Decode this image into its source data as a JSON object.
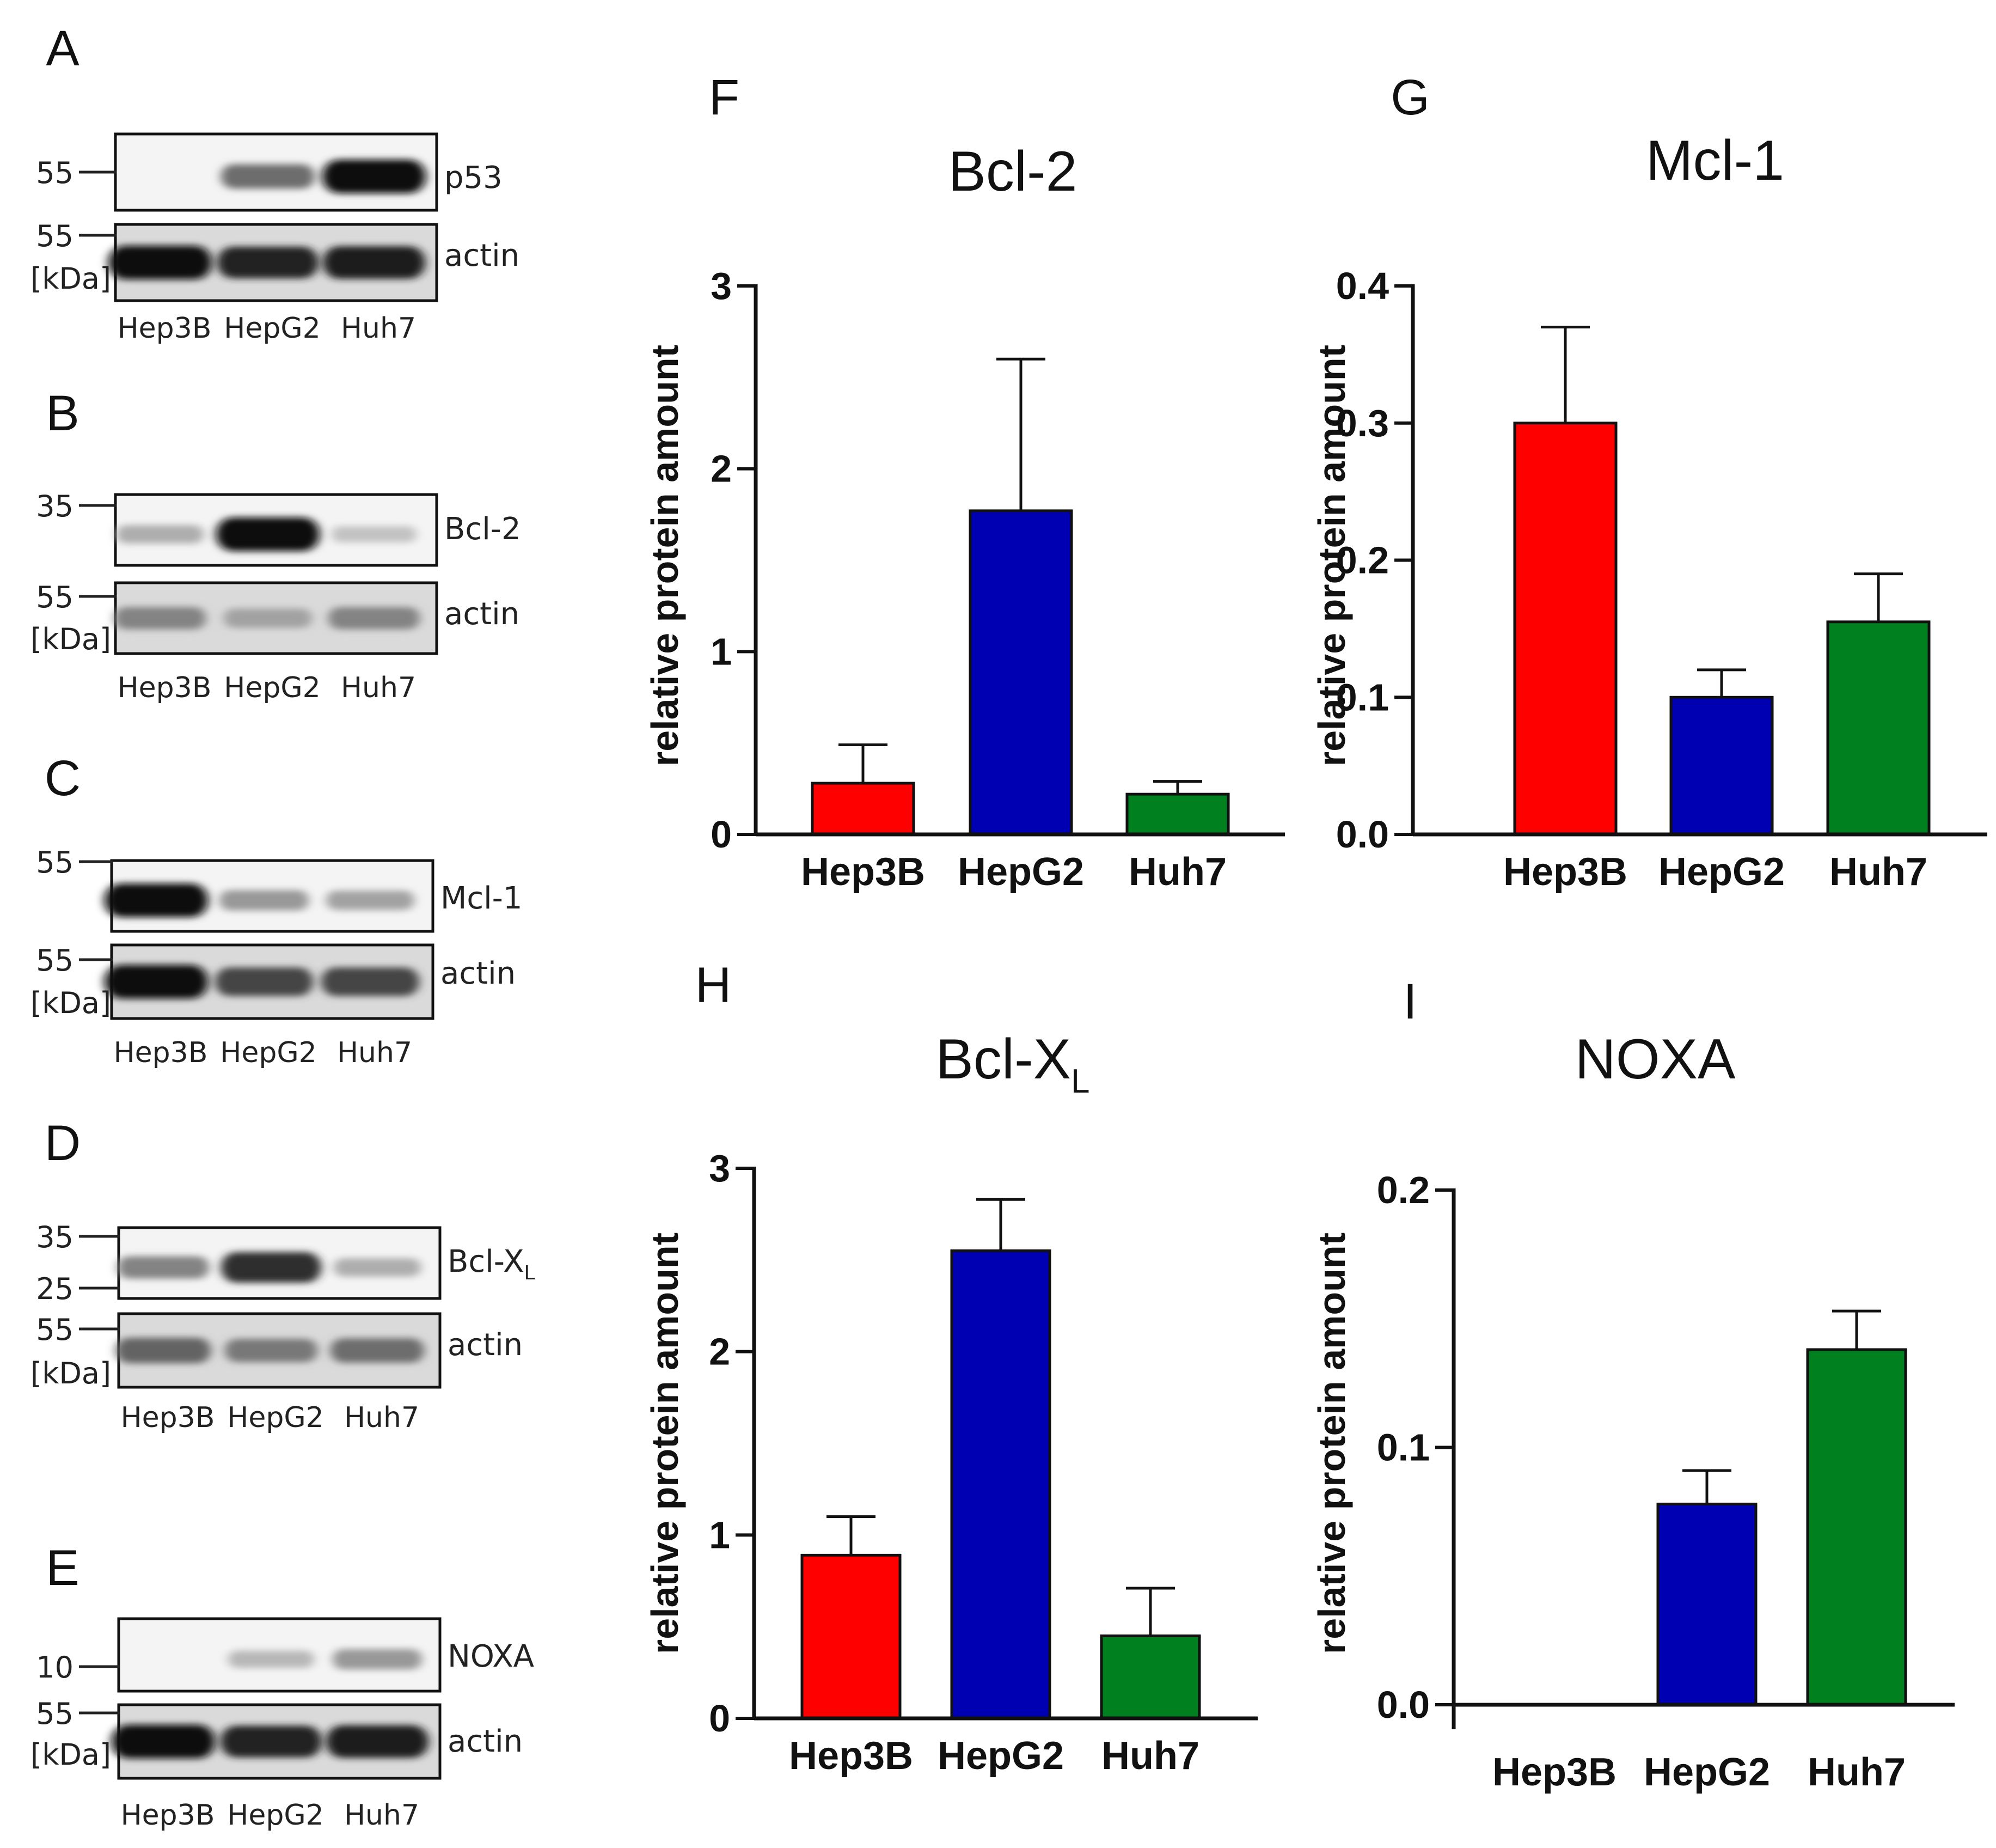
{
  "colors": {
    "hep3b": "#ff0000",
    "hepg2": "#0000b3",
    "huh7": "#00801f"
  },
  "blots": [
    {
      "letter": "A",
      "markers": [
        "55",
        "55"
      ],
      "kda": "[kDa]",
      "target_label": "p53",
      "target_sub": "",
      "actin_label": "actin",
      "lanes": [
        "Hep3B",
        "HepG2",
        "Huh7"
      ],
      "target_intensity": [
        0.0,
        0.55,
        1.0
      ],
      "actin_intensity": [
        1.0,
        0.9,
        0.95
      ]
    },
    {
      "letter": "B",
      "markers": [
        "35",
        "55"
      ],
      "kda": "[kDa]",
      "target_label": "Bcl-2",
      "target_sub": "",
      "actin_label": "actin",
      "lanes": [
        "Hep3B",
        "HepG2",
        "Huh7"
      ],
      "target_intensity": [
        0.25,
        1.0,
        0.15
      ],
      "actin_intensity": [
        0.45,
        0.3,
        0.45
      ]
    },
    {
      "letter": "C",
      "markers": [
        "55",
        "55"
      ],
      "kda": "[kDa]",
      "target_label": "Mcl-1",
      "target_sub": "",
      "actin_label": "actin",
      "lanes": [
        "Hep3B",
        "HepG2",
        "Huh7"
      ],
      "target_intensity": [
        1.0,
        0.35,
        0.3
      ],
      "actin_intensity": [
        1.0,
        0.75,
        0.75
      ]
    },
    {
      "letter": "D",
      "markers": [
        "35",
        "25",
        "55"
      ],
      "kda": "[kDa]",
      "target_label": "Bcl-X",
      "target_sub": "L",
      "actin_label": "actin",
      "lanes": [
        "Hep3B",
        "HepG2",
        "Huh7"
      ],
      "target_intensity": [
        0.45,
        0.85,
        0.25
      ],
      "actin_intensity": [
        0.6,
        0.5,
        0.55
      ]
    },
    {
      "letter": "E",
      "markers": [
        "10",
        "55"
      ],
      "kda": "[kDa]",
      "target_label": "NOXA",
      "target_sub": "",
      "actin_label": "actin",
      "lanes": [
        "Hep3B",
        "HepG2",
        "Huh7"
      ],
      "target_intensity": [
        0.0,
        0.2,
        0.35
      ],
      "actin_intensity": [
        1.0,
        0.9,
        0.95
      ]
    }
  ],
  "chart_data": [
    {
      "letter": "F",
      "type": "bar",
      "title": "Bcl-2",
      "title_sub": "",
      "ylabel": "relative protein amount",
      "categories": [
        "Hep3B",
        "HepG2",
        "Huh7"
      ],
      "values": [
        0.28,
        1.77,
        0.22
      ],
      "errors": [
        0.21,
        0.83,
        0.07
      ],
      "ylim": [
        0,
        3
      ],
      "yticks": [
        "0",
        "1",
        "2",
        "3"
      ]
    },
    {
      "letter": "G",
      "type": "bar",
      "title": "Mcl-1",
      "title_sub": "",
      "ylabel": "relative protein amount",
      "categories": [
        "Hep3B",
        "HepG2",
        "Huh7"
      ],
      "values": [
        0.3,
        0.1,
        0.155
      ],
      "errors": [
        0.07,
        0.02,
        0.035
      ],
      "ylim": [
        0,
        0.4
      ],
      "yticks": [
        "0.0",
        "0.1",
        "0.2",
        "0.3",
        "0.4"
      ]
    },
    {
      "letter": "H",
      "type": "bar",
      "title": "Bcl-X",
      "title_sub": "L",
      "ylabel": "relative protein amount",
      "categories": [
        "Hep3B",
        "HepG2",
        "Huh7"
      ],
      "values": [
        0.89,
        2.55,
        0.45
      ],
      "errors": [
        0.21,
        0.28,
        0.26
      ],
      "ylim": [
        0,
        3
      ],
      "yticks": [
        "0",
        "1",
        "2",
        "3"
      ]
    },
    {
      "letter": "I",
      "type": "bar",
      "title": "NOXA",
      "title_sub": "",
      "ylabel": "relative protein amount",
      "categories": [
        "Hep3B",
        "HepG2",
        "Huh7"
      ],
      "values": [
        0.0,
        0.078,
        0.138
      ],
      "errors": [
        0.0,
        0.013,
        0.015
      ],
      "ylim": [
        0,
        0.2
      ],
      "yticks": [
        "0.0",
        "0.1",
        "0.2"
      ]
    }
  ]
}
